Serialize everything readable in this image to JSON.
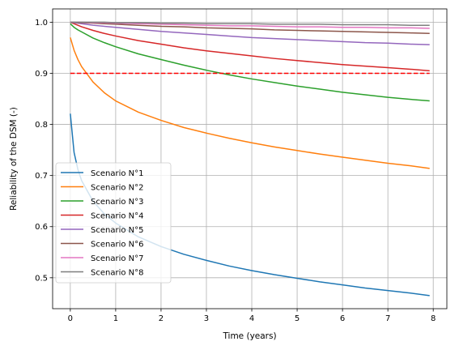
{
  "chart_data": {
    "type": "line",
    "title": "",
    "xlabel": "Time (years)",
    "ylabel": "Reliability of the DSM (-)",
    "xlim": [
      -0.39,
      8.3
    ],
    "ylim": [
      0.4395,
      1.026
    ],
    "xticks": [
      0,
      1,
      2,
      3,
      4,
      5,
      6,
      7,
      8
    ],
    "yticks": [
      0.5,
      0.6,
      0.7,
      0.8,
      0.9,
      1.0
    ],
    "xtick_labels": [
      "0",
      "1",
      "2",
      "3",
      "4",
      "5",
      "6",
      "7",
      "8"
    ],
    "ytick_labels": [
      "0.5",
      "0.6",
      "0.7",
      "0.8",
      "0.9",
      "1.0"
    ],
    "grid": true,
    "legend_position": "lower-left",
    "x": [
      0,
      0.083,
      0.167,
      0.25,
      0.5,
      0.75,
      1,
      1.5,
      2,
      2.5,
      3,
      3.5,
      4,
      4.5,
      5,
      5.5,
      6,
      6.5,
      7,
      7.5,
      7.92
    ],
    "series": [
      {
        "name": "Scenario N°1",
        "color": "#1f77b4",
        "values": [
          0.821,
          0.745,
          0.712,
          0.69,
          0.65,
          0.625,
          0.607,
          0.58,
          0.561,
          0.546,
          0.534,
          0.523,
          0.514,
          0.506,
          0.499,
          0.492,
          0.486,
          0.48,
          0.475,
          0.47,
          0.465
        ]
      },
      {
        "name": "Scenario N°2",
        "color": "#ff7f0e",
        "values": [
          0.97,
          0.945,
          0.927,
          0.913,
          0.883,
          0.862,
          0.846,
          0.824,
          0.808,
          0.794,
          0.783,
          0.773,
          0.764,
          0.756,
          0.749,
          0.742,
          0.736,
          0.73,
          0.724,
          0.719,
          0.714
        ]
      },
      {
        "name": "Scenario N°3",
        "color": "#2ca02c",
        "values": [
          0.997,
          0.99,
          0.985,
          0.981,
          0.969,
          0.96,
          0.952,
          0.938,
          0.927,
          0.916,
          0.906,
          0.897,
          0.889,
          0.882,
          0.875,
          0.869,
          0.863,
          0.858,
          0.853,
          0.849,
          0.846
        ]
      },
      {
        "name": "Scenario N°4",
        "color": "#d62728",
        "values": [
          1.0,
          0.997,
          0.994,
          0.991,
          0.984,
          0.978,
          0.973,
          0.964,
          0.957,
          0.95,
          0.944,
          0.939,
          0.934,
          0.929,
          0.925,
          0.921,
          0.917,
          0.914,
          0.911,
          0.908,
          0.905
        ]
      },
      {
        "name": "Scenario N°5",
        "color": "#9467bd",
        "values": [
          1.0,
          0.999,
          0.998,
          0.997,
          0.994,
          0.992,
          0.99,
          0.986,
          0.982,
          0.979,
          0.976,
          0.973,
          0.97,
          0.968,
          0.966,
          0.964,
          0.962,
          0.96,
          0.959,
          0.957,
          0.956
        ]
      },
      {
        "name": "Scenario N°6",
        "color": "#8c564b",
        "values": [
          1.0,
          1.0,
          0.999,
          0.999,
          0.998,
          0.997,
          0.996,
          0.994,
          0.992,
          0.991,
          0.989,
          0.988,
          0.987,
          0.985,
          0.984,
          0.983,
          0.982,
          0.981,
          0.98,
          0.979,
          0.978
        ]
      },
      {
        "name": "Scenario N°7",
        "color": "#e377c2",
        "values": [
          1.0,
          1.0,
          1.0,
          1.0,
          0.999,
          0.999,
          0.998,
          0.997,
          0.996,
          0.995,
          0.994,
          0.993,
          0.993,
          0.992,
          0.991,
          0.991,
          0.99,
          0.99,
          0.989,
          0.989,
          0.988
        ]
      },
      {
        "name": "Scenario N°8",
        "color": "#7f7f7f",
        "values": [
          1.0,
          1.0,
          1.0,
          1.0,
          1.0,
          1.0,
          0.999,
          0.999,
          0.998,
          0.998,
          0.997,
          0.997,
          0.997,
          0.996,
          0.996,
          0.996,
          0.995,
          0.995,
          0.995,
          0.994,
          0.994
        ]
      }
    ],
    "threshold": {
      "y": 0.9,
      "x_range": [
        0,
        7.92
      ],
      "color": "#ff0000",
      "style": "dashed"
    }
  }
}
